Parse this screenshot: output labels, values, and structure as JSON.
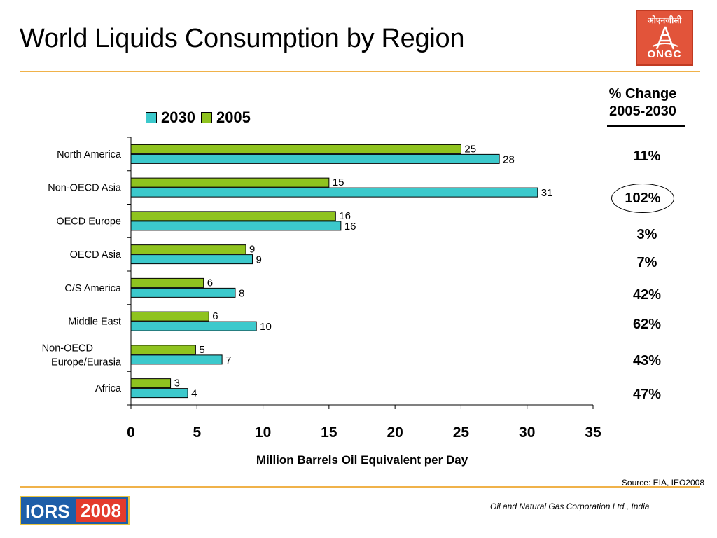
{
  "title": "World Liquids Consumption by Region",
  "logo": {
    "hindi_text": "ओएनजीसी",
    "english_text": "ONGC"
  },
  "legend": [
    {
      "label": "2030",
      "color": "#3cc9cc"
    },
    {
      "label": "2005",
      "color": "#8fc31f"
    }
  ],
  "pct_change": {
    "header_line1": "% Change",
    "header_line2": "2005-2030",
    "values": [
      "11%",
      "102%",
      "3%",
      "7%",
      "42%",
      "62%",
      "43%",
      "47%"
    ],
    "circled_index": 1
  },
  "chart_data": {
    "type": "bar",
    "orientation": "horizontal",
    "categories": [
      "North America",
      "Non-OECD Asia",
      "OECD Europe",
      "OECD Asia",
      "C/S America",
      "Middle East",
      "Non-OECD\nEurope/Eurasia",
      "Africa"
    ],
    "series": [
      {
        "name": "2005",
        "color": "#8fc31f",
        "values": [
          25,
          15,
          16,
          9,
          6,
          6,
          5,
          3
        ],
        "labels": [
          "25",
          "15",
          "16",
          "9",
          "6",
          "6",
          "5",
          "3"
        ],
        "plotted": [
          25,
          15,
          15.5,
          8.7,
          5.5,
          5.9,
          4.9,
          3.0
        ]
      },
      {
        "name": "2030",
        "color": "#3cc9cc",
        "values": [
          28,
          31,
          16,
          9,
          8,
          10,
          7,
          4
        ],
        "labels": [
          "28",
          "31",
          "16",
          "9",
          "8",
          "10",
          "7",
          "4"
        ],
        "plotted": [
          27.9,
          30.8,
          15.9,
          9.2,
          7.9,
          9.5,
          6.9,
          4.3
        ]
      }
    ],
    "xlabel": "Million Barrels Oil Equivalent per Day",
    "xlim": [
      0,
      35
    ],
    "xticks": [
      0,
      5,
      10,
      15,
      20,
      25,
      30,
      35
    ],
    "grid": false
  },
  "source": "Source:  EIA, IEO2008",
  "footer": "Oil and Natural Gas Corporation Ltd., India",
  "iors": {
    "part1": "IORS",
    "part2": "2008"
  }
}
